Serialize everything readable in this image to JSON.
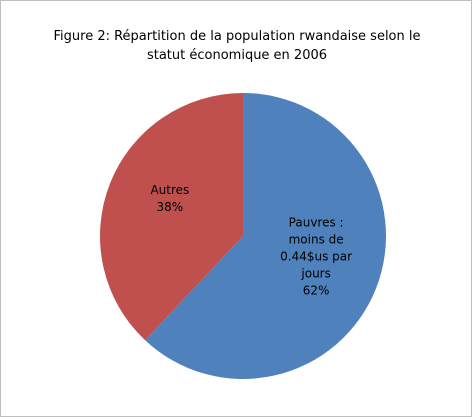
{
  "chart_data": {
    "type": "pie",
    "title": "Figure 2: Répartition de la population rwandaise selon le statut économique en 2006",
    "categories": [
      "Pauvres : moins de 0.44$us par jours",
      "Autres"
    ],
    "values": [
      62,
      38
    ],
    "value_labels": [
      "62%",
      "38%"
    ],
    "colors": [
      "#4f81bd",
      "#c0504d"
    ]
  }
}
